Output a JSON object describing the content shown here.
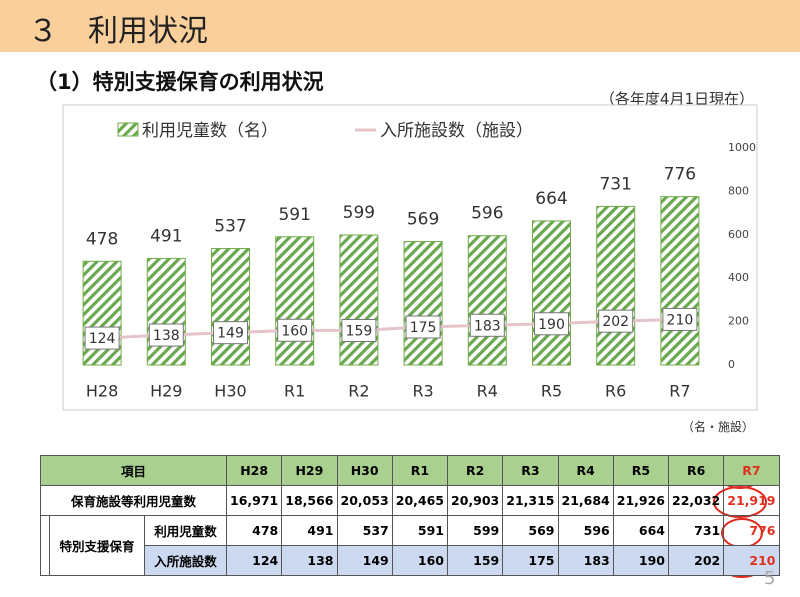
{
  "header": {
    "title": "３　利用状況",
    "subtitle": "（1）特別支援保育の利用状況",
    "date_note": "（各年度4月1日現在）",
    "unit_note": "（名・施設）",
    "page_number": "5"
  },
  "chart_data": {
    "type": "bar_line",
    "categories": [
      "H28",
      "H29",
      "H30",
      "R1",
      "R2",
      "R3",
      "R4",
      "R5",
      "R6",
      "R7"
    ],
    "series": [
      {
        "name": "利用児童数（名）",
        "type": "bar",
        "color": "#70ad47",
        "values": [
          478,
          491,
          537,
          591,
          599,
          569,
          596,
          664,
          731,
          776
        ]
      },
      {
        "name": "入所施設数（施設）",
        "type": "line",
        "color": "#e4c4c8",
        "values": [
          124,
          138,
          149,
          160,
          159,
          175,
          183,
          190,
          202,
          210
        ]
      }
    ],
    "ylim": [
      0,
      1000
    ],
    "yticks": [
      0,
      200,
      400,
      600,
      800,
      1000
    ],
    "legend": "top"
  },
  "table": {
    "header": [
      "項目",
      "H28",
      "H29",
      "H30",
      "R1",
      "R2",
      "R3",
      "R4",
      "R5",
      "R6",
      "R7"
    ],
    "rows": [
      {
        "label": "保育施設等利用児童数",
        "values": [
          "16,971",
          "18,566",
          "20,053",
          "20,465",
          "20,903",
          "21,315",
          "21,684",
          "21,926",
          "22,032",
          "21,919"
        ]
      },
      {
        "group": "特別支援保育",
        "label": "利用児童数",
        "values": [
          "478",
          "491",
          "537",
          "591",
          "599",
          "569",
          "596",
          "664",
          "731",
          "776"
        ]
      },
      {
        "label": "入所施設数",
        "values": [
          "124",
          "138",
          "149",
          "160",
          "159",
          "175",
          "183",
          "190",
          "202",
          "210"
        ]
      }
    ]
  }
}
